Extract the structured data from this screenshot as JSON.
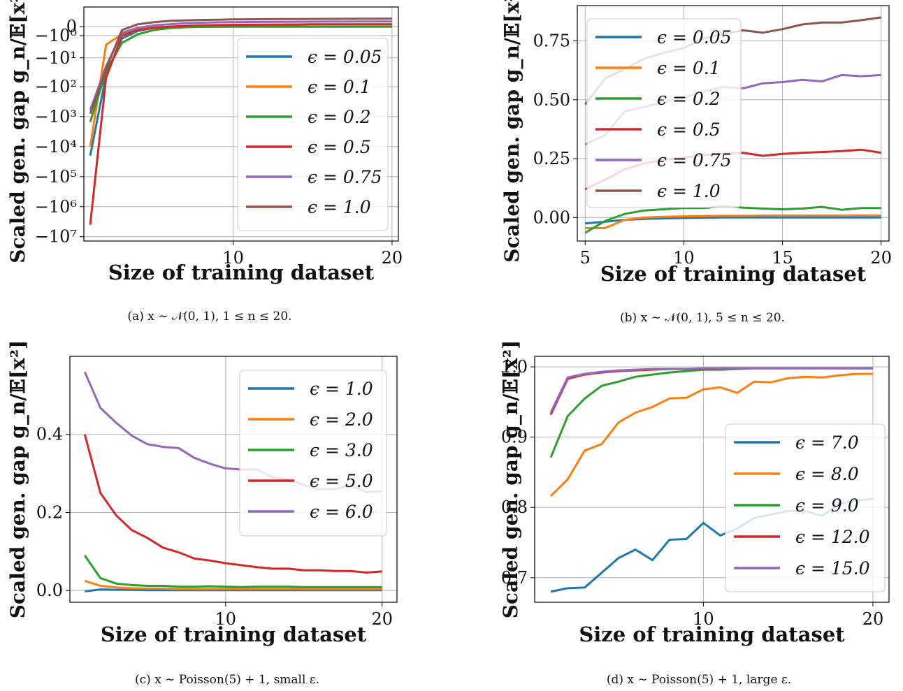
{
  "chart_data": [
    {
      "type": "line",
      "caption": "(a) x ∼ 𝒩(0, 1), 1 ≤ n ≤ 20.",
      "xlabel": "Size of training dataset",
      "ylabel": "Scaled gen. gap g_n/𝔼[x²]",
      "yscale": "symlog",
      "xlim": [
        0.6,
        20.4
      ],
      "xticks": [
        10,
        20
      ],
      "yticks": [
        0,
        -1,
        -10,
        -100,
        -1000,
        -10000,
        -100000,
        -1000000,
        -10000000
      ],
      "ytick_labels": [
        "0",
        "−10⁰",
        "−10¹",
        "−10²",
        "−10³",
        "−10⁴",
        "−10⁵",
        "−10⁶",
        "−10⁷"
      ],
      "grid": true,
      "legend_position": "lower-right",
      "x": [
        1,
        2,
        3,
        4,
        5,
        6,
        7,
        8,
        9,
        10,
        11,
        12,
        13,
        14,
        15,
        16,
        17,
        18,
        19,
        20
      ],
      "series": [
        {
          "name": "ϵ = 0.05",
          "color": "#1f77b4",
          "values": [
            -20000,
            -40,
            -1.5,
            -0.4,
            -0.1,
            -0.04,
            -0.02,
            -0.01,
            -0.005,
            -0.003,
            -0.002,
            -0.001,
            -0.001,
            -0.001,
            0,
            0,
            0,
            0,
            0,
            0
          ]
        },
        {
          "name": "ϵ = 0.1",
          "color": "#ff7f0e",
          "values": [
            -10000,
            -3,
            -0.8,
            -0.2,
            -0.06,
            -0.02,
            -0.01,
            -0.005,
            -0.002,
            0,
            0,
            0,
            0,
            0,
            0,
            0,
            0,
            0,
            0,
            0
          ]
        },
        {
          "name": "ϵ = 0.2",
          "color": "#2ca02c",
          "values": [
            -1500,
            -30,
            -2.5,
            -0.8,
            -0.3,
            -0.12,
            -0.05,
            -0.02,
            -0.01,
            0,
            0,
            0,
            0,
            0,
            0,
            0,
            0,
            0,
            0,
            0
          ]
        },
        {
          "name": "ϵ = 0.5",
          "color": "#d62728",
          "values": [
            -4000000,
            -50,
            -1,
            -0.3,
            -0.1,
            0,
            0.05,
            0.1,
            0.12,
            0.14,
            0.15,
            0.16,
            0.17,
            0.18,
            0.19,
            0.19,
            0.2,
            0.2,
            0.2,
            0.2
          ]
        },
        {
          "name": "ϵ = 0.75",
          "color": "#9467bd",
          "values": [
            -600,
            -20,
            -0.6,
            -0.1,
            0.1,
            0.2,
            0.3,
            0.35,
            0.38,
            0.4,
            0.42,
            0.43,
            0.44,
            0.45,
            0.46,
            0.47,
            0.47,
            0.48,
            0.48,
            0.48
          ]
        },
        {
          "name": "ϵ = 1.0",
          "color": "#8c564b",
          "values": [
            -800,
            -25,
            -0.3,
            0.2,
            0.4,
            0.55,
            0.62,
            0.66,
            0.7,
            0.73,
            0.75,
            0.77,
            0.78,
            0.79,
            0.8,
            0.81,
            0.82,
            0.83,
            0.84,
            0.85
          ]
        }
      ]
    },
    {
      "type": "line",
      "caption": "(b) x ∼ 𝒩(0, 1), 5 ≤ n ≤ 20.",
      "xlabel": "Size of training dataset",
      "ylabel": "Scaled gen. gap g_n/𝔼[x²]",
      "xlim": [
        4.6,
        20.4
      ],
      "ylim": [
        -0.1,
        0.9
      ],
      "xticks": [
        5,
        10,
        15,
        20
      ],
      "yticks": [
        0.0,
        0.25,
        0.5,
        0.75
      ],
      "ytick_labels": [
        "0.00",
        "0.25",
        "0.50",
        "0.75"
      ],
      "grid": true,
      "legend_position": "upper-left",
      "x": [
        5,
        6,
        7,
        8,
        9,
        10,
        11,
        12,
        13,
        14,
        15,
        16,
        17,
        18,
        19,
        20
      ],
      "series": [
        {
          "name": "ϵ = 0.05",
          "color": "#1f77b4",
          "values": [
            -0.025,
            -0.018,
            -0.01,
            -0.006,
            -0.004,
            -0.002,
            -0.001,
            0.0,
            0.0,
            0.0,
            0.0,
            0.0,
            0.0,
            0.0,
            0.0,
            0.0
          ]
        },
        {
          "name": "ϵ = 0.1",
          "color": "#ff7f0e",
          "values": [
            -0.045,
            -0.045,
            -0.01,
            0.0,
            0.003,
            0.005,
            0.006,
            0.007,
            0.007,
            0.008,
            0.008,
            0.008,
            0.008,
            0.008,
            0.009,
            0.008
          ]
        },
        {
          "name": "ϵ = 0.2",
          "color": "#2ca02c",
          "values": [
            -0.065,
            -0.015,
            0.015,
            0.03,
            0.035,
            0.04,
            0.04,
            0.048,
            0.042,
            0.038,
            0.035,
            0.038,
            0.045,
            0.033,
            0.04,
            0.04
          ]
        },
        {
          "name": "ϵ = 0.5",
          "color": "#d62728",
          "values": [
            0.12,
            0.16,
            0.205,
            0.23,
            0.245,
            0.255,
            0.265,
            0.27,
            0.275,
            0.262,
            0.27,
            0.275,
            0.278,
            0.282,
            0.288,
            0.275
          ]
        },
        {
          "name": "ϵ = 0.75",
          "color": "#9467bd",
          "values": [
            0.31,
            0.35,
            0.45,
            0.47,
            0.49,
            0.51,
            0.535,
            0.555,
            0.548,
            0.57,
            0.575,
            0.585,
            0.578,
            0.605,
            0.6,
            0.605
          ]
        },
        {
          "name": "ϵ = 1.0",
          "color": "#8c564b",
          "values": [
            0.48,
            0.59,
            0.63,
            0.675,
            0.7,
            0.72,
            0.76,
            0.78,
            0.795,
            0.785,
            0.8,
            0.82,
            0.828,
            0.828,
            0.838,
            0.85
          ]
        }
      ]
    },
    {
      "type": "line",
      "caption": "(c) x ∼ Poisson(5) + 1, small ε.",
      "xlabel": "Size of training dataset",
      "ylabel": "Scaled gen. gap g_n/𝔼[x²]",
      "xlim": [
        0.05,
        20.95
      ],
      "ylim": [
        -0.03,
        0.6
      ],
      "xticks": [
        10,
        20
      ],
      "yticks": [
        0.0,
        0.2,
        0.4
      ],
      "ytick_labels": [
        "0.0",
        "0.2",
        "0.4"
      ],
      "grid": true,
      "legend_position": "upper-right",
      "x": [
        1,
        2,
        3,
        4,
        5,
        6,
        7,
        8,
        9,
        10,
        11,
        12,
        13,
        14,
        15,
        16,
        17,
        18,
        19,
        20
      ],
      "series": [
        {
          "name": "ϵ = 1.0",
          "color": "#1f77b4",
          "values": [
            -0.002,
            0.003,
            0.002,
            0.002,
            0.001,
            0.001,
            0.001,
            0.001,
            0.001,
            0.001,
            0.001,
            0.001,
            0.001,
            0.001,
            0.001,
            0.001,
            0.001,
            0.001,
            0.001,
            0.001
          ]
        },
        {
          "name": "ϵ = 2.0",
          "color": "#ff7f0e",
          "values": [
            0.025,
            0.012,
            0.008,
            0.006,
            0.005,
            0.005,
            0.004,
            0.004,
            0.004,
            0.004,
            0.004,
            0.004,
            0.004,
            0.004,
            0.004,
            0.004,
            0.004,
            0.004,
            0.004,
            0.004
          ]
        },
        {
          "name": "ϵ = 3.0",
          "color": "#2ca02c",
          "values": [
            0.09,
            0.032,
            0.018,
            0.014,
            0.012,
            0.012,
            0.01,
            0.01,
            0.011,
            0.01,
            0.009,
            0.01,
            0.01,
            0.01,
            0.009,
            0.009,
            0.009,
            0.009,
            0.009,
            0.009
          ]
        },
        {
          "name": "ϵ = 5.0",
          "color": "#d62728",
          "values": [
            0.4,
            0.25,
            0.193,
            0.155,
            0.135,
            0.11,
            0.098,
            0.082,
            0.077,
            0.07,
            0.065,
            0.06,
            0.056,
            0.056,
            0.052,
            0.052,
            0.05,
            0.05,
            0.046,
            0.049
          ]
        },
        {
          "name": "ϵ = 6.0",
          "color": "#9467bd",
          "values": [
            0.56,
            0.468,
            0.43,
            0.397,
            0.375,
            0.368,
            0.365,
            0.34,
            0.325,
            0.313,
            0.31,
            0.31,
            0.29,
            0.285,
            0.27,
            0.26,
            0.26,
            0.27,
            0.252,
            0.255
          ]
        }
      ]
    },
    {
      "type": "line",
      "caption": "(d) x ∼ Poisson(5) + 1, large ε.",
      "xlabel": "Size of training dataset",
      "ylabel": "Scaled gen. gap g_n/𝔼[x²]",
      "xlim": [
        0.05,
        20.95
      ],
      "ylim": [
        0.665,
        1.015
      ],
      "xticks": [
        10,
        20
      ],
      "yticks": [
        0.7,
        0.8,
        0.9,
        1.0
      ],
      "ytick_labels": [
        "0.7",
        "0.8",
        "0.9",
        "1.0"
      ],
      "grid": true,
      "legend_position": "lower-right",
      "x": [
        1,
        2,
        3,
        4,
        5,
        6,
        7,
        8,
        9,
        10,
        11,
        12,
        13,
        14,
        15,
        16,
        17,
        18,
        19,
        20
      ],
      "series": [
        {
          "name": "ϵ = 7.0",
          "color": "#1f77b4",
          "values": [
            0.68,
            0.685,
            0.686,
            0.707,
            0.728,
            0.74,
            0.725,
            0.754,
            0.755,
            0.778,
            0.76,
            0.77,
            0.785,
            0.79,
            0.795,
            0.795,
            0.788,
            0.805,
            0.81,
            0.812
          ]
        },
        {
          "name": "ϵ = 8.0",
          "color": "#ff7f0e",
          "values": [
            0.816,
            0.84,
            0.881,
            0.89,
            0.921,
            0.935,
            0.943,
            0.955,
            0.956,
            0.968,
            0.971,
            0.963,
            0.979,
            0.978,
            0.984,
            0.986,
            0.985,
            0.988,
            0.99,
            0.99
          ]
        },
        {
          "name": "ϵ = 9.0",
          "color": "#2ca02c",
          "values": [
            0.871,
            0.93,
            0.955,
            0.973,
            0.979,
            0.986,
            0.989,
            0.992,
            0.994,
            0.996,
            0.996,
            0.997,
            0.998,
            0.998,
            0.998,
            0.998,
            0.998,
            0.998,
            0.998,
            0.998
          ]
        },
        {
          "name": "ϵ = 12.0",
          "color": "#d62728",
          "values": [
            0.932,
            0.983,
            0.989,
            0.992,
            0.994,
            0.995,
            0.996,
            0.997,
            0.997,
            0.997,
            0.998,
            0.998,
            0.998,
            0.998,
            0.998,
            0.998,
            0.998,
            0.998,
            0.998,
            0.998
          ]
        },
        {
          "name": "ϵ = 15.0",
          "color": "#9467bd",
          "values": [
            0.935,
            0.985,
            0.99,
            0.993,
            0.995,
            0.996,
            0.997,
            0.997,
            0.997,
            0.998,
            0.998,
            0.998,
            0.998,
            0.998,
            0.998,
            0.998,
            0.998,
            0.998,
            0.998,
            0.998
          ]
        }
      ]
    }
  ]
}
